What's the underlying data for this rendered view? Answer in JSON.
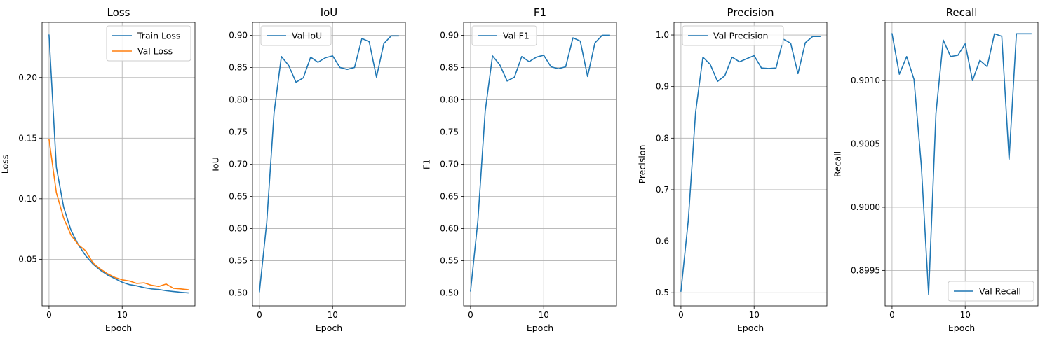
{
  "figure": {
    "background": "#ffffff",
    "grid_color": "#b0b0b0"
  },
  "chart_data": [
    {
      "type": "line",
      "title": "Loss",
      "xlabel": "Epoch",
      "ylabel": "Loss",
      "x": [
        0,
        1,
        2,
        3,
        4,
        5,
        6,
        7,
        8,
        9,
        10,
        11,
        12,
        13,
        14,
        15,
        16,
        17,
        18,
        19
      ],
      "xlim": [
        -0.95,
        19.95
      ],
      "ylim": [
        0.0115,
        0.2455
      ],
      "xticks": [
        0,
        10
      ],
      "yticks": [
        0.05,
        0.1,
        0.15,
        0.2
      ],
      "ytick_labels": [
        "0.05",
        "0.10",
        "0.15",
        "0.20"
      ],
      "grid": true,
      "legend": "upper right",
      "series": [
        {
          "name": "Train Loss",
          "color": "#1f77b4",
          "values": [
            0.235,
            0.126,
            0.093,
            0.074,
            0.062,
            0.053,
            0.046,
            0.041,
            0.037,
            0.034,
            0.031,
            0.029,
            0.028,
            0.0265,
            0.0255,
            0.025,
            0.024,
            0.0233,
            0.0227,
            0.0222
          ]
        },
        {
          "name": "Val Loss",
          "color": "#ff7f0e",
          "values": [
            0.149,
            0.105,
            0.084,
            0.07,
            0.062,
            0.057,
            0.047,
            0.042,
            0.038,
            0.035,
            0.033,
            0.032,
            0.03,
            0.0305,
            0.0285,
            0.0275,
            0.0295,
            0.026,
            0.0255,
            0.0248
          ]
        }
      ]
    },
    {
      "type": "line",
      "title": "IoU",
      "xlabel": "Epoch",
      "ylabel": "IoU",
      "x": [
        0,
        1,
        2,
        3,
        4,
        5,
        6,
        7,
        8,
        9,
        10,
        11,
        12,
        13,
        14,
        15,
        16,
        17,
        18,
        19
      ],
      "xlim": [
        -0.95,
        19.95
      ],
      "ylim": [
        0.48,
        0.92
      ],
      "xticks": [
        0,
        10
      ],
      "yticks": [
        0.5,
        0.55,
        0.6,
        0.65,
        0.7,
        0.75,
        0.8,
        0.85,
        0.9
      ],
      "ytick_labels": [
        "0.50",
        "0.55",
        "0.60",
        "0.65",
        "0.70",
        "0.75",
        "0.80",
        "0.85",
        "0.90"
      ],
      "grid": true,
      "legend": "upper left",
      "series": [
        {
          "name": "Val IoU",
          "color": "#1f77b4",
          "values": [
            0.502,
            0.61,
            0.78,
            0.867,
            0.853,
            0.827,
            0.834,
            0.866,
            0.858,
            0.865,
            0.868,
            0.85,
            0.847,
            0.85,
            0.895,
            0.89,
            0.835,
            0.887,
            0.899,
            0.899
          ]
        }
      ]
    },
    {
      "type": "line",
      "title": "F1",
      "xlabel": "Epoch",
      "ylabel": "F1",
      "x": [
        0,
        1,
        2,
        3,
        4,
        5,
        6,
        7,
        8,
        9,
        10,
        11,
        12,
        13,
        14,
        15,
        16,
        17,
        18,
        19
      ],
      "xlim": [
        -0.95,
        19.95
      ],
      "ylim": [
        0.48,
        0.92
      ],
      "xticks": [
        0,
        10
      ],
      "yticks": [
        0.5,
        0.55,
        0.6,
        0.65,
        0.7,
        0.75,
        0.8,
        0.85,
        0.9
      ],
      "ytick_labels": [
        "0.50",
        "0.55",
        "0.60",
        "0.65",
        "0.70",
        "0.75",
        "0.80",
        "0.85",
        "0.90"
      ],
      "grid": true,
      "legend": "upper left",
      "series": [
        {
          "name": "Val F1",
          "color": "#1f77b4",
          "values": [
            0.503,
            0.612,
            0.782,
            0.868,
            0.854,
            0.829,
            0.835,
            0.867,
            0.859,
            0.866,
            0.869,
            0.851,
            0.848,
            0.851,
            0.896,
            0.891,
            0.836,
            0.888,
            0.9,
            0.9
          ]
        }
      ]
    },
    {
      "type": "line",
      "title": "Precision",
      "xlabel": "Epoch",
      "ylabel": "Precision",
      "x": [
        0,
        1,
        2,
        3,
        4,
        5,
        6,
        7,
        8,
        9,
        10,
        11,
        12,
        13,
        14,
        15,
        16,
        17,
        18,
        19
      ],
      "xlim": [
        -0.95,
        19.95
      ],
      "ylim": [
        0.4745,
        1.0245
      ],
      "xticks": [
        0,
        10
      ],
      "yticks": [
        0.5,
        0.6,
        0.7,
        0.8,
        0.9,
        1.0
      ],
      "ytick_labels": [
        "0.5",
        "0.6",
        "0.7",
        "0.8",
        "0.9",
        "1.0"
      ],
      "grid": true,
      "legend": "upper left",
      "series": [
        {
          "name": "Val Precision",
          "color": "#1f77b4",
          "values": [
            0.503,
            0.64,
            0.85,
            0.957,
            0.943,
            0.91,
            0.921,
            0.957,
            0.948,
            0.954,
            0.96,
            0.936,
            0.935,
            0.936,
            0.992,
            0.984,
            0.925,
            0.985,
            0.997,
            0.997
          ]
        }
      ]
    },
    {
      "type": "line",
      "title": "Recall",
      "xlabel": "Epoch",
      "ylabel": "Recall",
      "x": [
        0,
        1,
        2,
        3,
        4,
        5,
        6,
        7,
        8,
        9,
        10,
        11,
        12,
        13,
        14,
        15,
        16,
        17,
        18,
        19
      ],
      "xlim": [
        -0.95,
        19.95
      ],
      "ylim": [
        0.89922,
        0.90146
      ],
      "xticks": [
        0,
        10
      ],
      "yticks": [
        0.8995,
        0.9,
        0.9005,
        0.901
      ],
      "ytick_labels": [
        "0.8995",
        "0.9000",
        "0.9005",
        "0.9010"
      ],
      "grid": true,
      "legend": "lower right",
      "series": [
        {
          "name": "Val Recall",
          "color": "#1f77b4",
          "values": [
            0.90137,
            0.90105,
            0.90119,
            0.90101,
            0.90033,
            0.89931,
            0.90074,
            0.90132,
            0.90119,
            0.9012,
            0.90129,
            0.901,
            0.90116,
            0.90111,
            0.90137,
            0.90135,
            0.90038,
            0.90137,
            0.90137,
            0.90137
          ]
        }
      ]
    }
  ]
}
